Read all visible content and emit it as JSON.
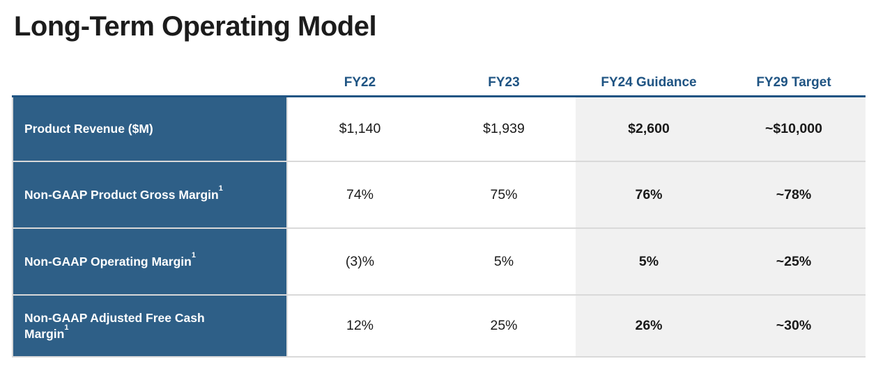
{
  "title": "Long-Term Operating Model",
  "table": {
    "columns": [
      "FY22",
      "FY23",
      "FY24 Guidance",
      "FY29 Target"
    ],
    "highlighted_columns": [
      "FY24 Guidance",
      "FY29 Target"
    ],
    "footnote_marker": "1",
    "rows": [
      {
        "label": "Product Revenue ($M)",
        "superscript": "",
        "values": [
          "$1,140",
          "$1,939",
          "$2,600",
          "~$10,000"
        ]
      },
      {
        "label": "Non-GAAP Product Gross Margin",
        "superscript": "1",
        "values": [
          "74%",
          "75%",
          "76%",
          "~78%"
        ]
      },
      {
        "label": "Non-GAAP Operating Margin",
        "superscript": "1",
        "values": [
          "(3)%",
          "5%",
          "5%",
          "~25%"
        ]
      },
      {
        "label": "Non-GAAP Adjusted Free Cash Margin",
        "superscript": "1",
        "values": [
          "12%",
          "25%",
          "26%",
          "~30%"
        ]
      }
    ]
  },
  "colors": {
    "title_text": "#1c1c1c",
    "header_text": "#1f5483",
    "header_rule": "#1f5483",
    "row_label_background": "#2e5f87",
    "row_label_text": "#ffffff",
    "highlight_column_background": "#f1f1f1",
    "value_text": "#1a1a1a",
    "row_separator": "#d9d9d9"
  }
}
